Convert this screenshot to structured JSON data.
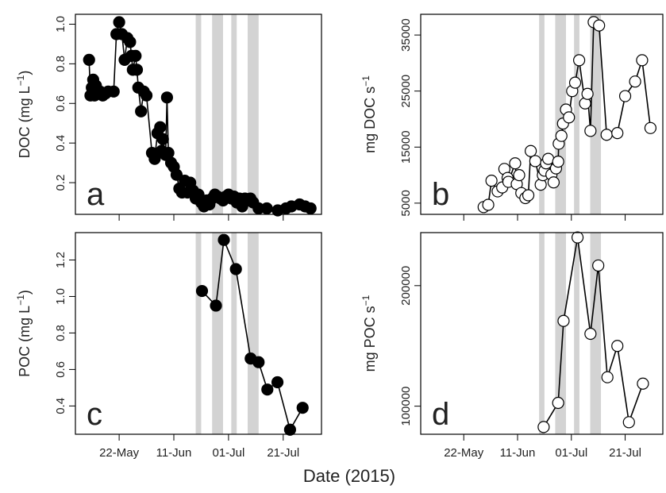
{
  "x_label": "Date (2015)",
  "chart_data": [
    {
      "type": "line",
      "label": "a",
      "y_label": [
        "DOC (mg L",
        "−1",
        ")"
      ],
      "xlim": [
        126,
        216
      ],
      "xticks": [
        142,
        162,
        182,
        202
      ],
      "ylim": [
        0.04,
        1.05
      ],
      "yticks": [
        0.2,
        0.4,
        0.6,
        0.8,
        {
          "value": 1,
          "label": "1.0"
        }
      ],
      "shaded_x": [
        [
          170,
          172
        ],
        [
          176,
          180
        ],
        [
          183,
          185
        ],
        [
          189,
          193
        ]
      ],
      "shade_color": "#d3d3d3",
      "color": "#000000",
      "marker_fill": "#000000",
      "x": [
        131,
        131.5,
        132,
        132.5,
        133,
        133.5,
        134,
        135,
        136,
        137,
        138,
        140,
        141,
        142,
        143,
        144,
        145,
        146,
        146.5,
        147,
        148,
        148.5,
        149,
        150,
        151,
        152,
        154,
        155,
        156,
        157,
        157.5,
        158,
        159,
        159.5,
        160,
        161,
        162,
        163,
        164,
        165,
        166,
        167,
        168,
        169,
        170,
        171,
        172,
        173,
        174,
        175,
        176,
        177,
        178,
        179,
        180,
        181,
        182,
        183,
        184,
        185,
        186,
        187,
        188,
        189,
        190,
        191,
        193,
        196,
        200,
        203,
        205,
        208,
        210,
        212
      ],
      "values": [
        0.82,
        0.64,
        0.68,
        0.72,
        0.64,
        0.69,
        0.65,
        0.66,
        0.64,
        0.65,
        0.66,
        0.66,
        0.95,
        1.01,
        0.95,
        0.82,
        0.93,
        0.91,
        0.84,
        0.77,
        0.84,
        0.77,
        0.68,
        0.56,
        0.66,
        0.64,
        0.35,
        0.32,
        0.45,
        0.48,
        0.36,
        0.42,
        0.34,
        0.63,
        0.35,
        0.3,
        0.28,
        0.24,
        0.17,
        0.15,
        0.21,
        0.15,
        0.2,
        0.16,
        0.12,
        0.14,
        0.1,
        0.08,
        0.11,
        0.09,
        0.12,
        0.14,
        0.13,
        0.12,
        0.11,
        0.13,
        0.14,
        0.12,
        0.13,
        0.1,
        0.12,
        0.08,
        0.12,
        0.11,
        0.12,
        0.1,
        0.07,
        0.07,
        0.06,
        0.07,
        0.08,
        0.09,
        0.08,
        0.07
      ]
    },
    {
      "type": "line",
      "label": "b",
      "y_label": [
        "mg DOC  s",
        "−1"
      ],
      "xlim": [
        126,
        216
      ],
      "xticks": [
        142,
        162,
        182,
        202
      ],
      "ylim": [
        3000,
        38700
      ],
      "yticks": [
        5000,
        15000,
        25000,
        35000
      ],
      "shaded_x": [
        [
          170,
          172
        ],
        [
          176,
          180
        ],
        [
          183,
          185
        ],
        [
          189,
          193
        ]
      ],
      "shade_color": "#d3d3d3",
      "color": "#000000",
      "marker_fill": "#ffffff",
      "x": [
        149.4,
        151.1,
        152.3,
        154.6,
        156.3,
        157.1,
        158.3,
        158.6,
        161.1,
        161.7,
        162.6,
        163.4,
        164.9,
        166,
        166.9,
        168.6,
        170.6,
        171.4,
        172,
        172.6,
        173.4,
        174.6,
        175.4,
        176.3,
        177.1,
        177.3,
        178.3,
        178.9,
        180,
        181.1,
        182.3,
        183.4,
        184.9,
        187.1,
        188,
        189.1,
        190.3,
        192.3,
        195.1,
        199.1,
        202,
        205.7,
        208.3,
        211.4
      ],
      "values": [
        4300,
        4700,
        9000,
        7100,
        7800,
        11100,
        9500,
        8800,
        12100,
        8400,
        10000,
        6800,
        5900,
        6400,
        14300,
        12500,
        8300,
        10000,
        10800,
        12100,
        12900,
        10100,
        8700,
        11200,
        12400,
        15600,
        17000,
        19200,
        21700,
        20300,
        25000,
        26500,
        30500,
        22800,
        24500,
        17900,
        37300,
        36700,
        17200,
        17500,
        24100,
        26700,
        30500,
        18400
      ]
    },
    {
      "type": "line",
      "label": "c",
      "y_label": [
        "POC (mg L",
        "−1",
        ")"
      ],
      "xlim": [
        126,
        216
      ],
      "xticks": [
        {
          "value": 142,
          "label": "22-May"
        },
        {
          "value": 162,
          "label": "11-Jun"
        },
        {
          "value": 182,
          "label": "01-Jul"
        },
        {
          "value": 202,
          "label": "21-Jul"
        }
      ],
      "ylim": [
        0.245,
        1.35
      ],
      "yticks": [
        0.4,
        0.6,
        0.8,
        {
          "value": 1,
          "label": "1.0"
        },
        1.2
      ],
      "shaded_x": [
        [
          170,
          172
        ],
        [
          176,
          180
        ],
        [
          183,
          185
        ],
        [
          189,
          193
        ]
      ],
      "shade_color": "#d3d3d3",
      "color": "#000000",
      "marker_fill": "#000000",
      "x": [
        172.3,
        177.4,
        180.3,
        184.7,
        190.1,
        193,
        196.2,
        199.9,
        204.5,
        209.1
      ],
      "values": [
        1.03,
        0.95,
        1.31,
        1.15,
        0.66,
        0.64,
        0.49,
        0.53,
        0.27,
        0.39
      ]
    },
    {
      "type": "line",
      "label": "d",
      "y_label": [
        "mg POC  s",
        "−1"
      ],
      "xlim": [
        126,
        216
      ],
      "xticks": [
        {
          "value": 142,
          "label": "22-May"
        },
        {
          "value": 162,
          "label": "11-Jun"
        },
        {
          "value": 182,
          "label": "01-Jul"
        },
        {
          "value": 202,
          "label": "21-Jul"
        }
      ],
      "ylim": [
        76700,
        244000
      ],
      "yticks": [
        100000,
        200000
      ],
      "shaded_x": [
        [
          170,
          172
        ],
        [
          176,
          180
        ],
        [
          183,
          185
        ],
        [
          189,
          193
        ]
      ],
      "shade_color": "#d3d3d3",
      "color": "#000000",
      "marker_fill": "#ffffff",
      "x": [
        171.7,
        177.1,
        179.1,
        184.3,
        189.1,
        192,
        195.4,
        199.1,
        203.4,
        208.6
      ],
      "values": [
        82700,
        102700,
        170700,
        240000,
        160000,
        216700,
        124000,
        150000,
        86700,
        118700
      ]
    }
  ]
}
